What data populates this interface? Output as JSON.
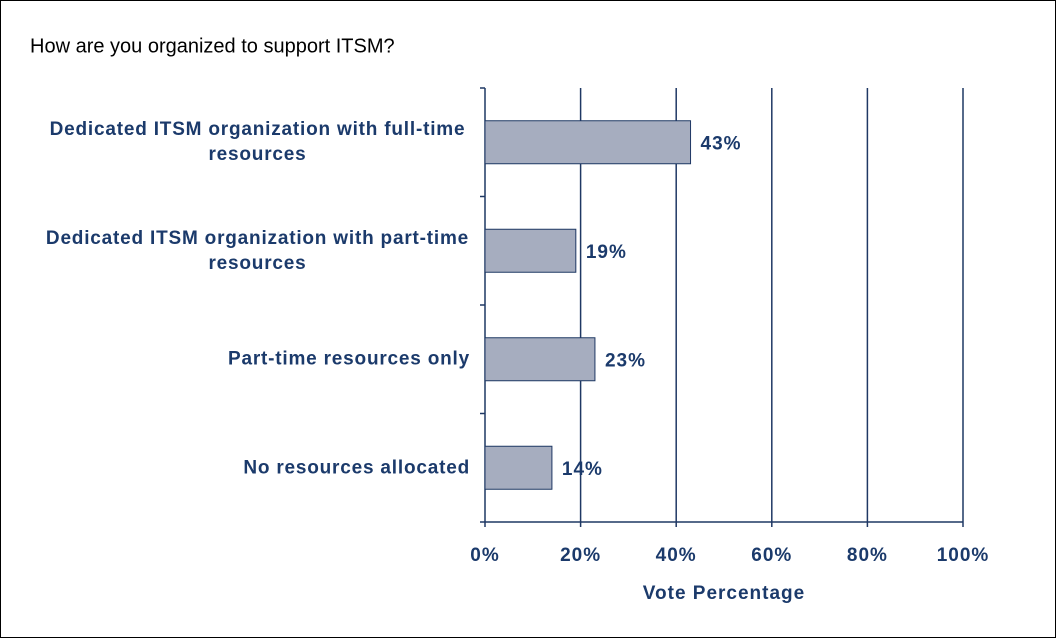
{
  "chart_data": {
    "type": "bar",
    "orientation": "horizontal",
    "title": "How are you organized to support ITSM?",
    "categories": [
      "Dedicated ITSM organization with full-time resources",
      "Dedicated ITSM organization with part-time resources",
      "Part-time resources only",
      "No resources allocated"
    ],
    "values": [
      43,
      19,
      23,
      14
    ],
    "value_labels": [
      "43%",
      "19%",
      "23%",
      "14%"
    ],
    "color": "#a6adbf",
    "xlim": [
      0,
      100
    ],
    "xticks": [
      {
        "value": 0,
        "label": "0%"
      },
      {
        "value": 20,
        "label": "20%"
      },
      {
        "value": 40,
        "label": "40%"
      },
      {
        "value": 60,
        "label": "60%"
      },
      {
        "value": 80,
        "label": "80%"
      },
      {
        "value": 100,
        "label": "100%"
      }
    ],
    "xlabel": "Vote Percentage",
    "grid": true
  }
}
